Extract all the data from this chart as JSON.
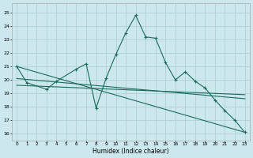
{
  "xlabel": "Humidex (Indice chaleur)",
  "xlim": [
    -0.5,
    23.5
  ],
  "ylim": [
    15.5,
    25.7
  ],
  "yticks": [
    16,
    17,
    18,
    19,
    20,
    21,
    22,
    23,
    24,
    25
  ],
  "xticks": [
    0,
    1,
    2,
    3,
    4,
    5,
    6,
    7,
    8,
    9,
    10,
    11,
    12,
    13,
    14,
    15,
    16,
    17,
    18,
    19,
    20,
    21,
    22,
    23
  ],
  "bg_color": "#cce8ee",
  "grid_color": "#b0ced6",
  "line_color": "#1a6b5a",
  "main_x": [
    0,
    1,
    3,
    4,
    6,
    7,
    8,
    9,
    10,
    11,
    12,
    13,
    14,
    15,
    16,
    17,
    18,
    19,
    20,
    21,
    22,
    23
  ],
  "main_y": [
    21.0,
    19.8,
    19.3,
    19.9,
    20.8,
    21.2,
    17.9,
    20.1,
    21.9,
    23.5,
    24.8,
    23.2,
    23.1,
    21.3,
    20.0,
    20.6,
    19.9,
    19.4,
    18.5,
    17.7,
    17.0,
    16.1
  ],
  "trend1_x": [
    0,
    23
  ],
  "trend1_y": [
    21.0,
    16.1
  ],
  "trend2_x": [
    0,
    23
  ],
  "trend2_y": [
    20.1,
    18.6
  ],
  "trend3_x": [
    0,
    23
  ],
  "trend3_y": [
    19.6,
    18.9
  ]
}
